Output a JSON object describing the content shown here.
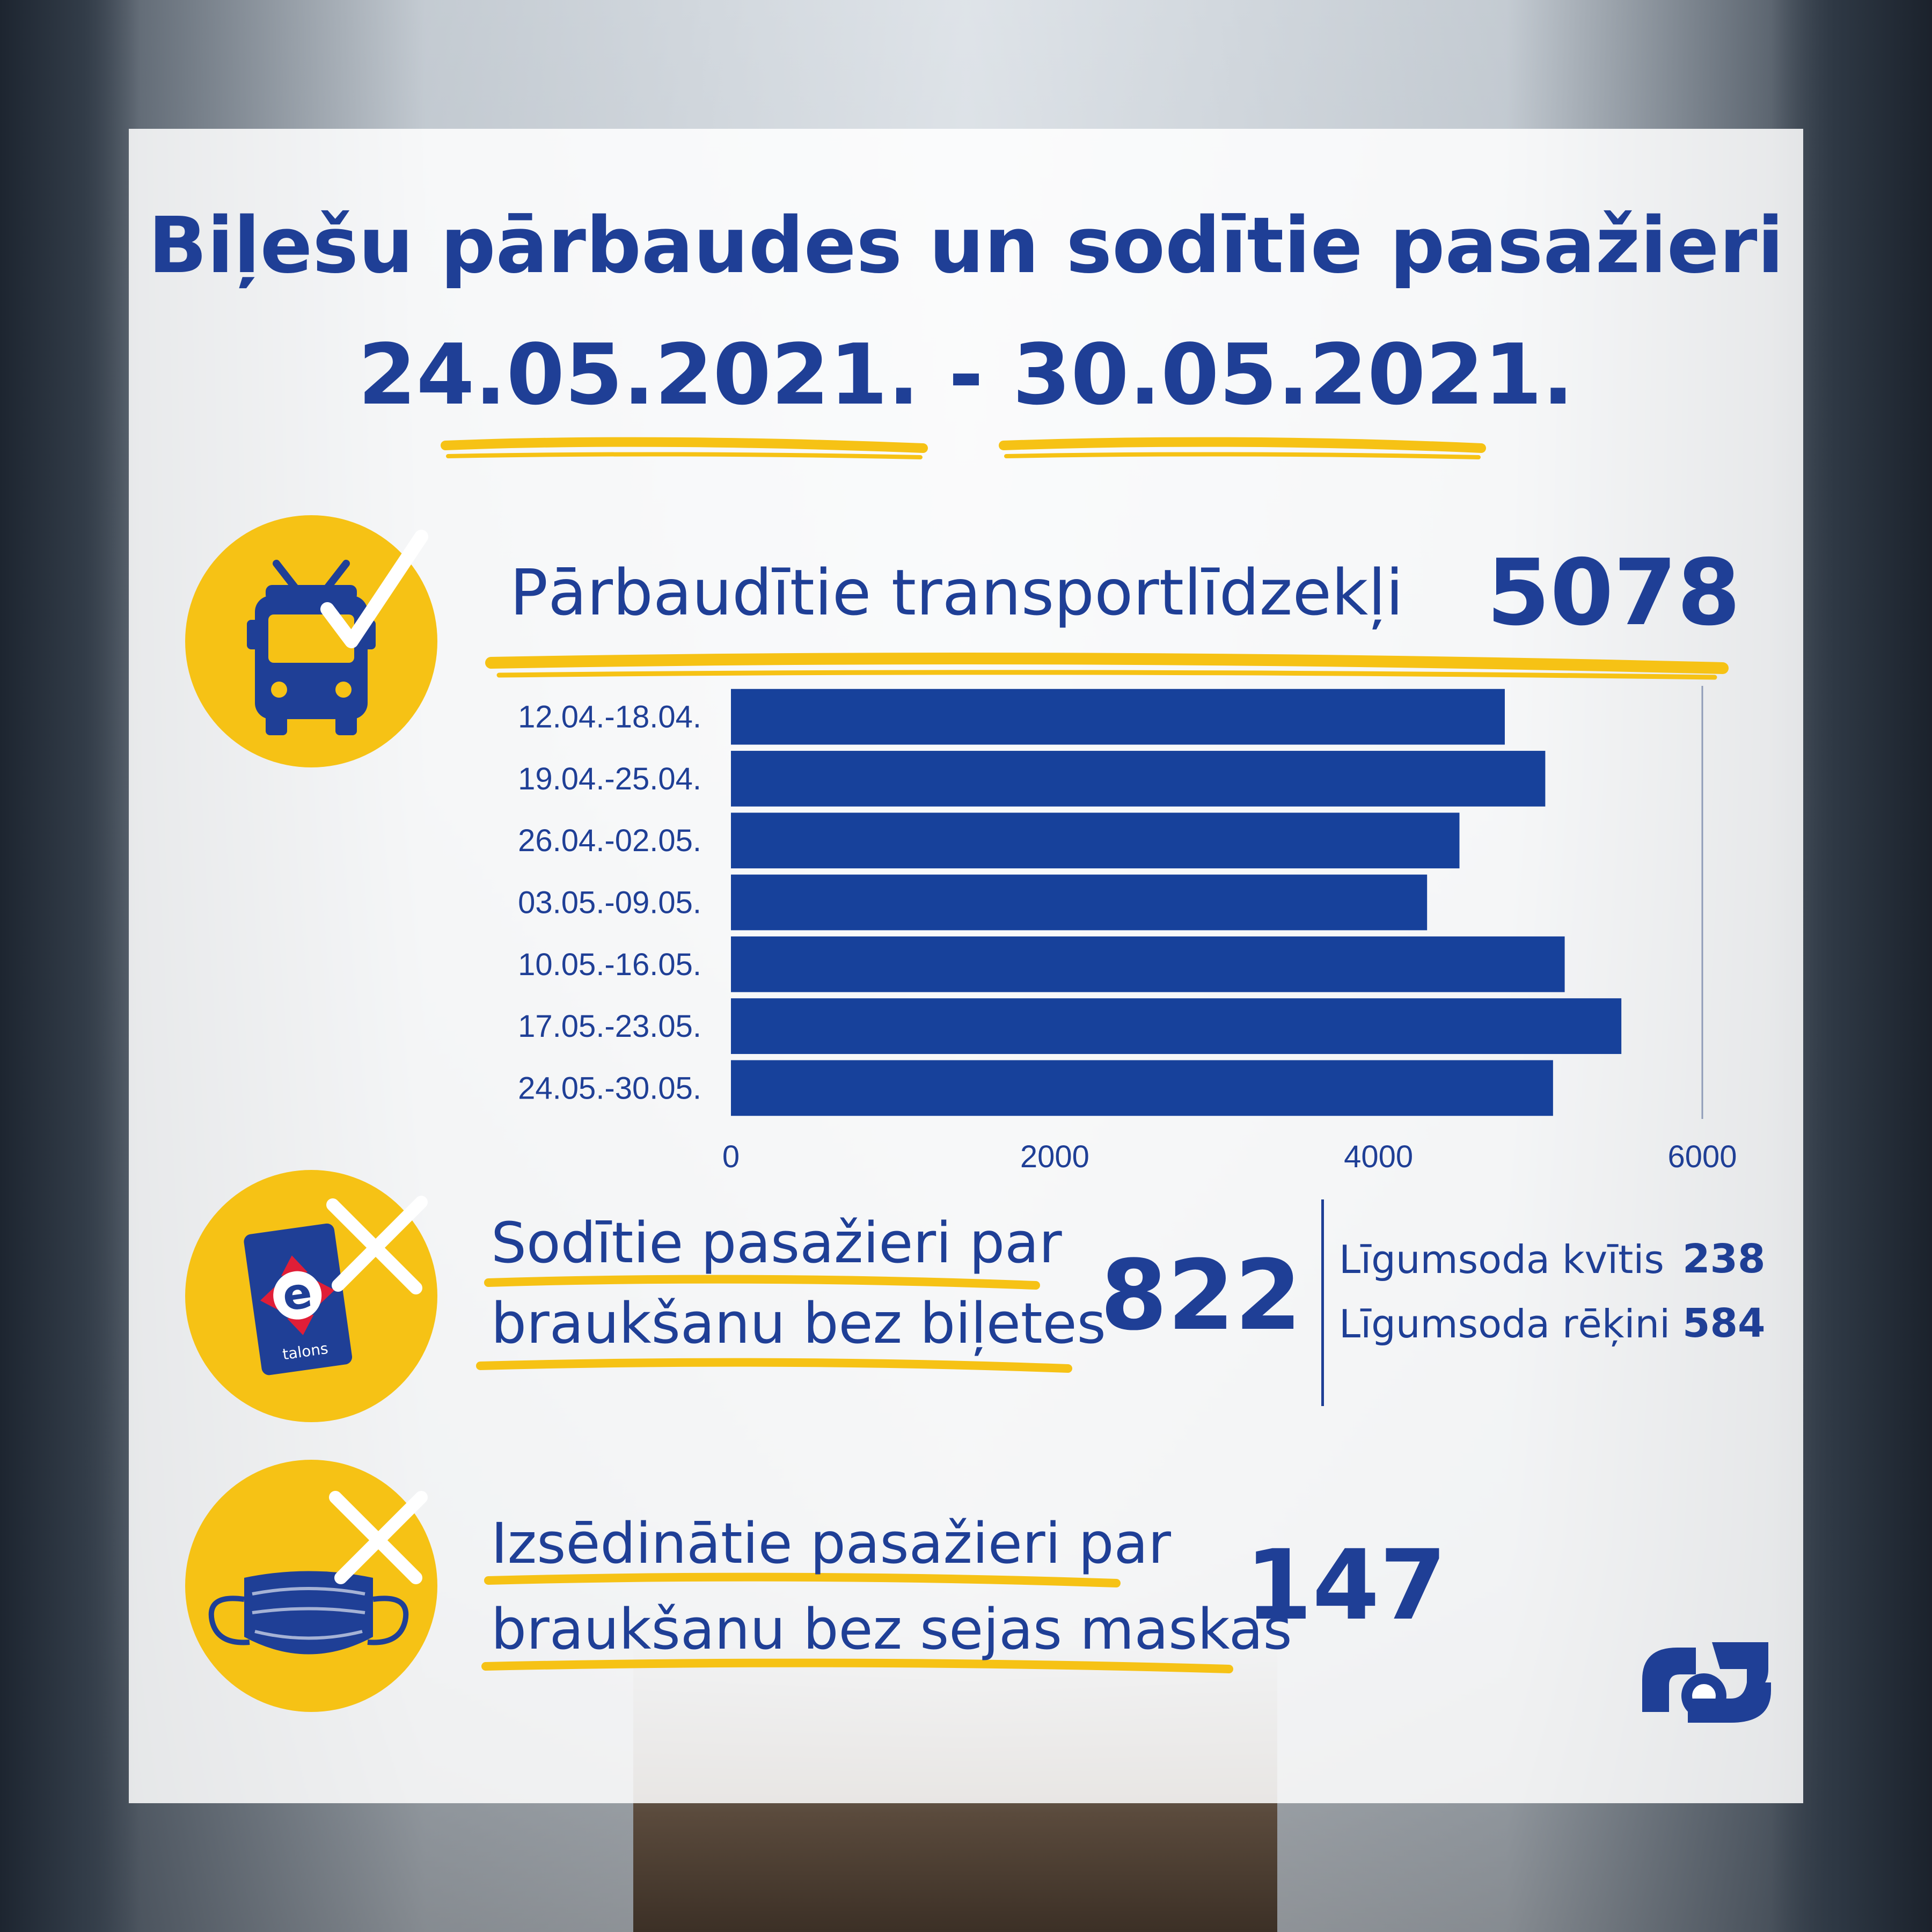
{
  "title": {
    "line1": "Biļešu pārbaudes un sodītie pasažieri",
    "line2": "24.05.2021. - 30.05.2021."
  },
  "colors": {
    "accent_blue": "#1f3f96",
    "bar_blue": "#17419b",
    "yellow": "#f6c215"
  },
  "icons": [
    "trolleybus-check-icon",
    "etalons-card-cross-icon",
    "face-mask-cross-icon",
    "rigas-satiksme-logo"
  ],
  "section_vehicles": {
    "label": "Pārbaudītie transportlīdzekļi",
    "value": "5078"
  },
  "chart_data": {
    "type": "bar",
    "orientation": "horizontal",
    "categories": [
      "12.04.-18.04.",
      "19.04.-25.04.",
      "26.04.-02.05.",
      "03.05.-09.05.",
      "10.05.-16.05.",
      "17.05.-23.05.",
      "24.05.-30.05."
    ],
    "values": [
      4780,
      5030,
      4500,
      4300,
      5150,
      5500,
      5078
    ],
    "xlim": [
      0,
      6000
    ],
    "xticks": [
      "0",
      "2000",
      "4000",
      "6000"
    ],
    "grid": false
  },
  "section_fined": {
    "label_line1": "Sodītie pasažieri par",
    "label_line2": "braukšanu bez biļetes",
    "value": "822",
    "breakdown": [
      {
        "label": "Līgumsoda kvītis",
        "value": "238"
      },
      {
        "label": "Līgumsoda rēķini",
        "value": "584"
      }
    ],
    "card_text": "talons"
  },
  "section_mask": {
    "label_line1": "Izsēdinātie pasažieri par",
    "label_line2": "braukšanu bez sejas maskas",
    "value": "147"
  }
}
